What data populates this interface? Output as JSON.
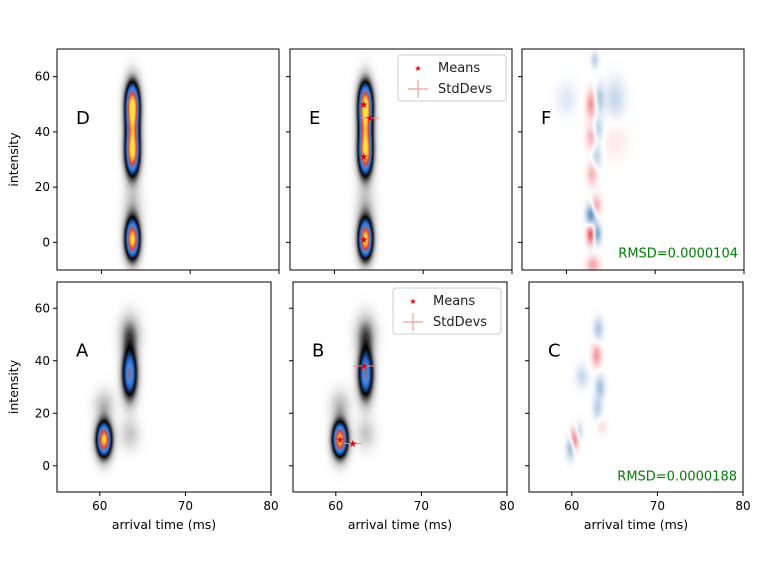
{
  "chart_data": [
    {
      "type": "heatmap",
      "panel": "D",
      "row": "top",
      "col": 0,
      "xlim": [
        55,
        80
      ],
      "ylim": [
        -10,
        70
      ],
      "xticks": [
        60,
        70,
        80
      ],
      "yticks": [
        0,
        20,
        40,
        60
      ],
      "xlabel": "",
      "ylabel": "intensity",
      "show_xticklabels": false,
      "show_yticklabels": true,
      "blobs": [
        {
          "x": 63.5,
          "y": 50,
          "sx": 0.55,
          "sy": 5.5,
          "a": 1.0
        },
        {
          "x": 63.5,
          "y": 32,
          "sx": 0.55,
          "sy": 5.5,
          "a": 0.95
        },
        {
          "x": 63.5,
          "y": 1,
          "sx": 0.55,
          "sy": 4.8,
          "a": 1.0
        },
        {
          "x": 63.5,
          "y": 41,
          "sx": 0.55,
          "sy": 5.0,
          "a": 0.45
        },
        {
          "x": 63.5,
          "y": 12,
          "sx": 0.7,
          "sy": 6,
          "a": 0.12
        }
      ]
    },
    {
      "type": "heatmap",
      "panel": "E",
      "row": "top",
      "col": 1,
      "xlim": [
        55,
        80
      ],
      "ylim": [
        -10,
        70
      ],
      "xticks": [
        60,
        70,
        80
      ],
      "yticks": [
        0,
        20,
        40,
        60
      ],
      "xlabel": "",
      "ylabel": "",
      "show_xticklabels": false,
      "show_yticklabels": false,
      "blobs": [
        {
          "x": 63.5,
          "y": 50,
          "sx": 0.55,
          "sy": 5.5,
          "a": 1.0
        },
        {
          "x": 63.5,
          "y": 32,
          "sx": 0.55,
          "sy": 5.5,
          "a": 0.95
        },
        {
          "x": 63.5,
          "y": 1,
          "sx": 0.55,
          "sy": 4.8,
          "a": 1.0
        },
        {
          "x": 63.5,
          "y": 41,
          "sx": 0.55,
          "sy": 5.0,
          "a": 0.45
        },
        {
          "x": 63.5,
          "y": 12,
          "sx": 0.7,
          "sy": 6,
          "a": 0.12
        }
      ],
      "means": [
        {
          "x": 63.3,
          "y": 50,
          "sdx": 0.3,
          "sdy": 1.0
        },
        {
          "x": 63.3,
          "y": 31,
          "sdx": 0.3,
          "sdy": 1.0
        },
        {
          "x": 63.3,
          "y": 1,
          "sdx": 0.3,
          "sdy": 1.0
        },
        {
          "x": 64.0,
          "y": 45,
          "sdx": 1.0,
          "sdy": 1.0
        }
      ],
      "legend": [
        "Means",
        "StdDevs"
      ]
    },
    {
      "type": "heatmap",
      "panel": "F",
      "row": "top",
      "col": 2,
      "xlim": [
        55,
        80
      ],
      "ylim": [
        -10,
        70
      ],
      "xticks": [
        60,
        70,
        80
      ],
      "yticks": [
        0,
        20,
        40,
        60
      ],
      "xlabel": "",
      "ylabel": "",
      "show_xticklabels": false,
      "show_yticklabels": false,
      "diverging": true,
      "blobs": [
        {
          "x": 62.8,
          "y": 3,
          "sx": 0.35,
          "sy": 2.5,
          "a": 0.9
        },
        {
          "x": 63.4,
          "y": 3,
          "sx": 0.35,
          "sy": 2.5,
          "a": -0.7
        },
        {
          "x": 62.8,
          "y": 10,
          "sx": 0.4,
          "sy": 2.8,
          "a": -0.8
        },
        {
          "x": 63.3,
          "y": 13,
          "sx": 0.4,
          "sy": 2.5,
          "a": 0.5
        },
        {
          "x": 62.9,
          "y": 25,
          "sx": 0.4,
          "sy": 3,
          "a": 0.35
        },
        {
          "x": 63.4,
          "y": 31,
          "sx": 0.4,
          "sy": 3,
          "a": -0.3
        },
        {
          "x": 62.8,
          "y": 38,
          "sx": 0.4,
          "sy": 3,
          "a": 0.35
        },
        {
          "x": 63.6,
          "y": 41,
          "sx": 0.4,
          "sy": 3,
          "a": -0.3
        },
        {
          "x": 62.8,
          "y": 50,
          "sx": 0.4,
          "sy": 3.5,
          "a": 0.5
        },
        {
          "x": 63.7,
          "y": 52,
          "sx": 0.4,
          "sy": 3.5,
          "a": -0.35
        },
        {
          "x": 65.5,
          "y": 52,
          "sx": 0.8,
          "sy": 5,
          "a": -0.25
        },
        {
          "x": 60.0,
          "y": 52,
          "sx": 0.8,
          "sy": 4,
          "a": -0.15
        },
        {
          "x": 65.5,
          "y": 37,
          "sx": 1.0,
          "sy": 5,
          "a": 0.1
        },
        {
          "x": 63.2,
          "y": 66,
          "sx": 0.3,
          "sy": 2,
          "a": -0.3
        },
        {
          "x": 63.0,
          "y": -8,
          "sx": 0.5,
          "sy": 2,
          "a": 0.4
        }
      ],
      "annotation": "RMSD=0.0000104"
    },
    {
      "type": "heatmap",
      "panel": "A",
      "row": "bottom",
      "col": 0,
      "xlim": [
        55,
        80
      ],
      "ylim": [
        -10,
        70
      ],
      "xticks": [
        60,
        70,
        80
      ],
      "yticks": [
        0,
        20,
        40,
        60
      ],
      "xlabel": "arrival time (ms)",
      "ylabel": "intensity",
      "show_xticklabels": true,
      "show_yticklabels": true,
      "blobs": [
        {
          "x": 60.5,
          "y": 10,
          "sx": 0.6,
          "sy": 4.5,
          "a": 1.0
        },
        {
          "x": 63.5,
          "y": 35,
          "sx": 0.6,
          "sy": 6.5,
          "a": 0.7
        },
        {
          "x": 63.5,
          "y": 50,
          "sx": 0.8,
          "sy": 5,
          "a": 0.22
        },
        {
          "x": 60.5,
          "y": 23,
          "sx": 0.8,
          "sy": 4,
          "a": 0.12
        },
        {
          "x": 63.5,
          "y": 12,
          "sx": 0.8,
          "sy": 4,
          "a": 0.1
        }
      ]
    },
    {
      "type": "heatmap",
      "panel": "B",
      "row": "bottom",
      "col": 1,
      "xlim": [
        55,
        80
      ],
      "ylim": [
        -10,
        70
      ],
      "xticks": [
        60,
        70,
        80
      ],
      "yticks": [
        0,
        20,
        40,
        60
      ],
      "xlabel": "arrival time (ms)",
      "ylabel": "",
      "show_xticklabels": true,
      "show_yticklabels": false,
      "blobs": [
        {
          "x": 60.5,
          "y": 10,
          "sx": 0.6,
          "sy": 4.5,
          "a": 1.0
        },
        {
          "x": 63.5,
          "y": 35,
          "sx": 0.6,
          "sy": 6.5,
          "a": 0.7
        },
        {
          "x": 63.5,
          "y": 50,
          "sx": 0.8,
          "sy": 5,
          "a": 0.22
        },
        {
          "x": 60.5,
          "y": 23,
          "sx": 0.8,
          "sy": 4,
          "a": 0.12
        },
        {
          "x": 63.5,
          "y": 12,
          "sx": 0.8,
          "sy": 4,
          "a": 0.1
        }
      ],
      "means": [
        {
          "x": 60.5,
          "y": 10,
          "sdx": 0.3,
          "sdy": 1.0
        },
        {
          "x": 63.3,
          "y": 38,
          "sdx": 1.3,
          "sdy": 1.3
        },
        {
          "x": 62.0,
          "y": 8.5,
          "sdx": 1.0,
          "sdy": 0.6
        }
      ],
      "legend": [
        "Means",
        "StdDevs"
      ]
    },
    {
      "type": "heatmap",
      "panel": "C",
      "row": "bottom",
      "col": 2,
      "xlim": [
        55,
        80
      ],
      "ylim": [
        -10,
        70
      ],
      "xticks": [
        60,
        70,
        80
      ],
      "yticks": [
        0,
        20,
        40,
        60
      ],
      "xlabel": "arrival time (ms)",
      "ylabel": "",
      "show_xticklabels": true,
      "show_yticklabels": false,
      "diverging": true,
      "blobs": [
        {
          "x": 60.3,
          "y": 10,
          "sx": 0.35,
          "sy": 3,
          "a": 0.7
        },
        {
          "x": 59.9,
          "y": 7,
          "sx": 0.35,
          "sy": 3,
          "a": -0.55
        },
        {
          "x": 60.8,
          "y": 13,
          "sx": 0.35,
          "sy": 2.5,
          "a": -0.3
        },
        {
          "x": 63.0,
          "y": 22,
          "sx": 0.4,
          "sy": 3,
          "a": -0.3
        },
        {
          "x": 63.3,
          "y": 30,
          "sx": 0.4,
          "sy": 3,
          "a": -0.4
        },
        {
          "x": 62.9,
          "y": 42,
          "sx": 0.4,
          "sy": 3,
          "a": 0.45
        },
        {
          "x": 63.1,
          "y": 52,
          "sx": 0.4,
          "sy": 3,
          "a": -0.35
        },
        {
          "x": 61.2,
          "y": 34,
          "sx": 0.5,
          "sy": 3,
          "a": -0.25
        },
        {
          "x": 63.5,
          "y": 15,
          "sx": 0.4,
          "sy": 2,
          "a": 0.15
        }
      ],
      "annotation": "RMSD=0.0000188"
    }
  ],
  "colors": {
    "seq_stops": [
      "#ffffff",
      "#bdbdbd",
      "#000000",
      "#1f5fc6",
      "#3d8fe6",
      "#f03c2b",
      "#fce13a"
    ],
    "div_neg": "#2166ac",
    "div_pos": "#e8212b",
    "marker": "#e8000b",
    "errbar": "#f08a86",
    "annotation": "#008000"
  }
}
